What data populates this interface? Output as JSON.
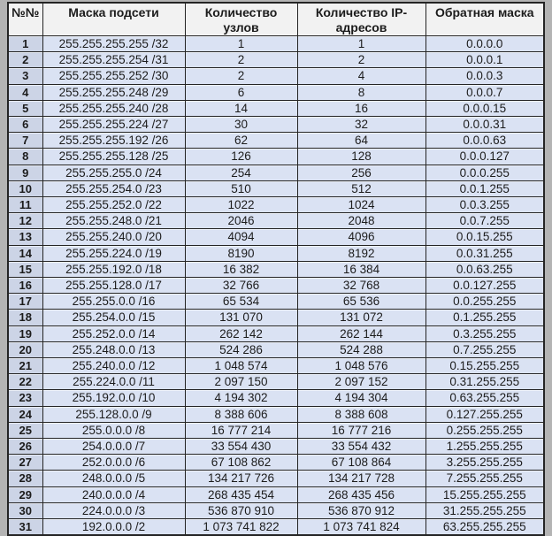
{
  "page": {
    "background_color": "#b4b4b4"
  },
  "table": {
    "colors": {
      "header_bg": "#f2f2f2",
      "row_bg": "#dae2f3",
      "num_col_bg": "#ccd4e6",
      "border": "#242424",
      "text": "#1c1c1c"
    },
    "header": {
      "num": "№№",
      "num_line2": "",
      "mask": "Маска подсети",
      "mask_line2": "",
      "nodes_line1": "Количество",
      "nodes_line2": "узлов",
      "ip_line1": "Количество IP-",
      "ip_line2": "адресов",
      "wildcard": "Обратная маска",
      "wildcard_line2": ""
    },
    "column_names": [
      "row-number",
      "subnet-mask",
      "node-count",
      "ip-count",
      "wildcard-mask"
    ],
    "rows": [
      [
        "1",
        "255.255.255.255 /32",
        "1",
        "1",
        "0.0.0.0"
      ],
      [
        "2",
        "255.255.255.254 /31",
        "2",
        "2",
        "0.0.0.1"
      ],
      [
        "3",
        "255.255.255.252 /30",
        "2",
        "4",
        "0.0.0.3"
      ],
      [
        "4",
        "255.255.255.248 /29",
        "6",
        "8",
        "0.0.0.7"
      ],
      [
        "5",
        "255.255.255.240 /28",
        "14",
        "16",
        "0.0.0.15"
      ],
      [
        "6",
        "255.255.255.224 /27",
        "30",
        "32",
        "0.0.0.31"
      ],
      [
        "7",
        "255.255.255.192 /26",
        "62",
        "64",
        "0.0.0.63"
      ],
      [
        "8",
        "255.255.255.128 /25",
        "126",
        "128",
        "0.0.0.127"
      ],
      [
        "9",
        "255.255.255.0 /24",
        "254",
        "256",
        "0.0.0.255"
      ],
      [
        "10",
        "255.255.254.0 /23",
        "510",
        "512",
        "0.0.1.255"
      ],
      [
        "11",
        "255.255.252.0 /22",
        "1022",
        "1024",
        "0.0.3.255"
      ],
      [
        "12",
        "255.255.248.0 /21",
        "2046",
        "2048",
        "0.0.7.255"
      ],
      [
        "13",
        "255.255.240.0 /20",
        "4094",
        "4096",
        "0.0.15.255"
      ],
      [
        "14",
        "255.255.224.0 /19",
        "8190",
        "8192",
        "0.0.31.255"
      ],
      [
        "15",
        "255.255.192.0 /18",
        "16 382",
        "16 384",
        "0.0.63.255"
      ],
      [
        "16",
        "255.255.128.0 /17",
        "32 766",
        "32 768",
        "0.0.127.255"
      ],
      [
        "17",
        "255.255.0.0 /16",
        "65 534",
        "65 536",
        "0.0.255.255"
      ],
      [
        "18",
        "255.254.0.0 /15",
        "131 070",
        "131 072",
        "0.1.255.255"
      ],
      [
        "19",
        "255.252.0.0 /14",
        "262 142",
        "262 144",
        "0.3.255.255"
      ],
      [
        "20",
        "255.248.0.0 /13",
        "524 286",
        "524 288",
        "0.7.255.255"
      ],
      [
        "21",
        "255.240.0.0 /12",
        "1 048 574",
        "1 048 576",
        "0.15.255.255"
      ],
      [
        "22",
        "255.224.0.0 /11",
        "2 097 150",
        "2 097 152",
        "0.31.255.255"
      ],
      [
        "23",
        "255.192.0.0 /10",
        "4 194 302",
        "4 194 304",
        "0.63.255.255"
      ],
      [
        "24",
        "255.128.0.0 /9",
        "8 388 606",
        "8 388 608",
        "0.127.255.255"
      ],
      [
        "25",
        "255.0.0.0 /8",
        "16 777 214",
        "16 777 216",
        "0.255.255.255"
      ],
      [
        "26",
        "254.0.0.0 /7",
        "33 554 430",
        "33 554 432",
        "1.255.255.255"
      ],
      [
        "27",
        "252.0.0.0 /6",
        "67 108 862",
        "67 108 864",
        "3.255.255.255"
      ],
      [
        "28",
        "248.0.0.0 /5",
        "134 217 726",
        "134 217 728",
        "7.255.255.255"
      ],
      [
        "29",
        "240.0.0.0 /4",
        "268 435 454",
        "268 435 456",
        "15.255.255.255"
      ],
      [
        "30",
        "224.0.0.0 /3",
        "536 870 910",
        "536 870 912",
        "31.255.255.255"
      ],
      [
        "31",
        "192.0.0.0 /2",
        "1 073 741 822",
        "1 073 741 824",
        "63.255.255.255"
      ]
    ]
  }
}
